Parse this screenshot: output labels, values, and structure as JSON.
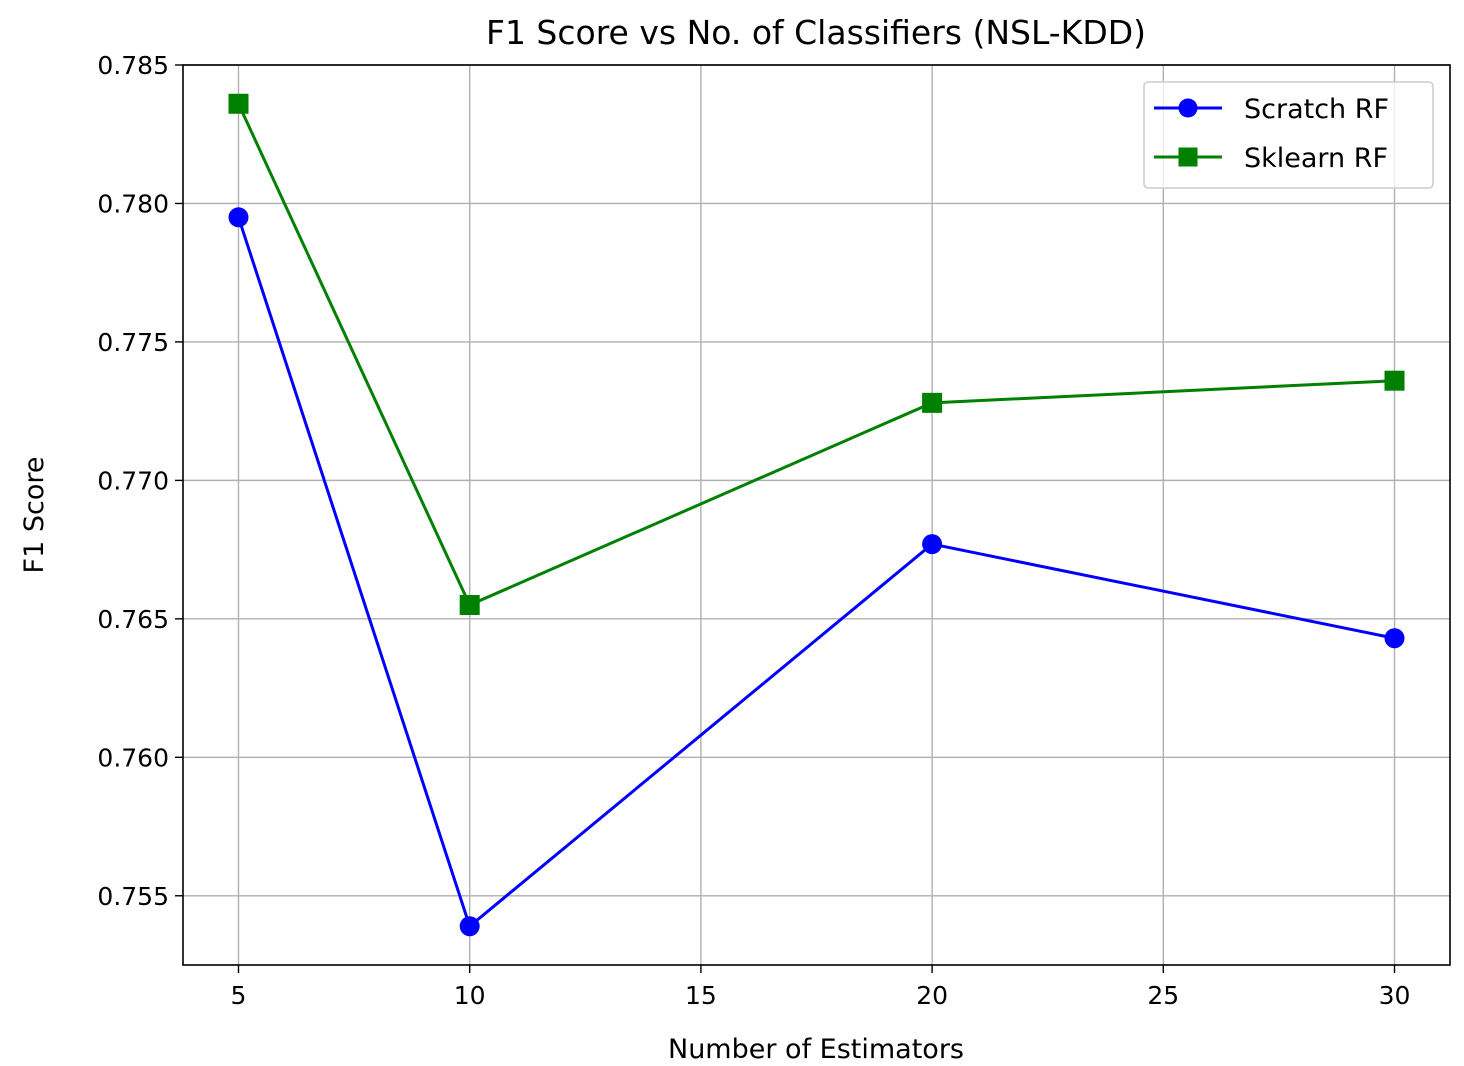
{
  "chart_data": {
    "type": "line",
    "title": "F1 Score vs No. of Classifiers (NSL-KDD)",
    "xlabel": "Number of Estimators",
    "ylabel": "F1 Score",
    "x": [
      5,
      10,
      20,
      30
    ],
    "xlim": [
      3.8,
      31.2
    ],
    "ylim": [
      0.7525,
      0.785
    ],
    "xticks": [
      5,
      10,
      15,
      20,
      25,
      30
    ],
    "yticks": [
      0.755,
      0.76,
      0.765,
      0.77,
      0.775,
      0.78,
      0.785
    ],
    "xtick_labels": [
      "5",
      "10",
      "15",
      "20",
      "25",
      "30"
    ],
    "ytick_labels": [
      "0.755",
      "0.760",
      "0.765",
      "0.770",
      "0.775",
      "0.780",
      "0.785"
    ],
    "grid": true,
    "legend_position": "top-right",
    "series": [
      {
        "name": "Scratch RF",
        "values": [
          0.7795,
          0.7539,
          0.7677,
          0.7643
        ],
        "color": "#0000ff",
        "marker": "circle"
      },
      {
        "name": "Sklearn RF",
        "values": [
          0.7836,
          0.7655,
          0.7728,
          0.7736
        ],
        "color": "#008000",
        "marker": "square"
      }
    ]
  }
}
